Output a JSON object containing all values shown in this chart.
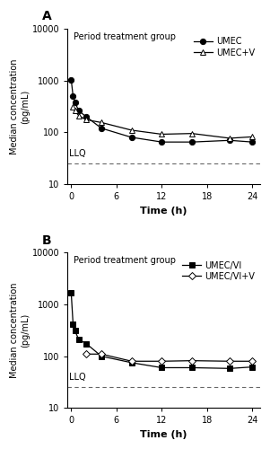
{
  "panel_A": {
    "label": "A",
    "title": "Period treatment group",
    "umec": {
      "label": "UMEC",
      "x": [
        0,
        0.25,
        0.5,
        1,
        2,
        4,
        8,
        12,
        16,
        21,
        24
      ],
      "y": [
        1050,
        500,
        380,
        260,
        200,
        120,
        80,
        65,
        65,
        70,
        65
      ]
    },
    "umec_v": {
      "label": "UMEC+V",
      "x": [
        0.25,
        0.5,
        1,
        2,
        4,
        8,
        12,
        16,
        21,
        24
      ],
      "y": [
        310,
        260,
        210,
        175,
        155,
        110,
        92,
        95,
        77,
        82
      ]
    },
    "llq": 25,
    "ylim": [
      10,
      10000
    ],
    "yticks": [
      10,
      100,
      1000,
      10000
    ],
    "ytick_labels": [
      "10",
      "100",
      "1000",
      "10000"
    ],
    "xticks": [
      0,
      6,
      12,
      18,
      24
    ],
    "xlabel": "Time (h)",
    "ylabel": "Median concentration\n(pg/mL)"
  },
  "panel_B": {
    "label": "B",
    "title": "Period treatment group",
    "umec_vi": {
      "label": "UMEC/VI",
      "x": [
        0,
        0.25,
        0.5,
        1,
        2,
        4,
        8,
        12,
        16,
        21,
        24
      ],
      "y": [
        1700,
        420,
        310,
        210,
        175,
        100,
        75,
        60,
        60,
        58,
        62
      ]
    },
    "umec_vi_v": {
      "label": "UMEC/VI+V",
      "x": [
        2,
        4,
        8,
        12,
        16,
        21,
        24
      ],
      "y": [
        110,
        110,
        80,
        80,
        82,
        80,
        80
      ]
    },
    "llq": 25,
    "ylim": [
      10,
      10000
    ],
    "yticks": [
      10,
      100,
      1000,
      10000
    ],
    "ytick_labels": [
      "10",
      "100",
      "1000",
      "10000"
    ],
    "xticks": [
      0,
      6,
      12,
      18,
      24
    ],
    "xlabel": "Time (h)",
    "ylabel": "Median concentration\n(pg/mL)"
  },
  "line_color": "#000000",
  "background_color": "#ffffff",
  "llq_color": "#666666",
  "font_size": 7,
  "tick_font_size": 7,
  "label_font_size": 8
}
